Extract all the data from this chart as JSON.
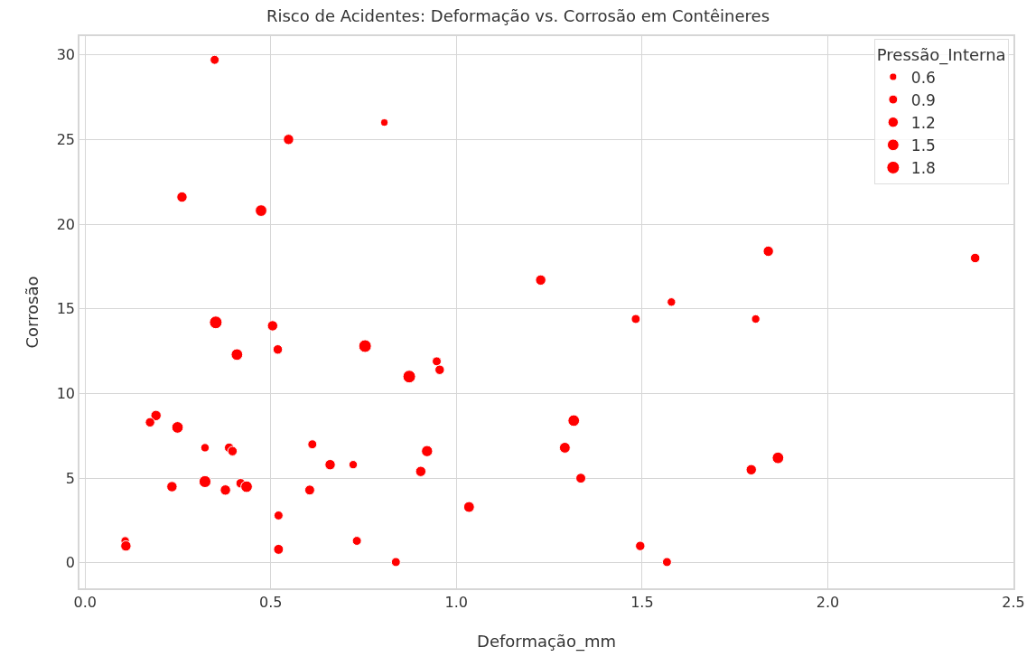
{
  "chart_data": {
    "type": "bubble",
    "title": "Risco de Acidentes: Deformação vs. Corrosão em Contêineres",
    "xlabel": "Deformação_mm",
    "ylabel": "Corrosão",
    "legend_title": "Pressão_Interna",
    "x": [
      0.349,
      0.806,
      0.548,
      0.261,
      0.474,
      0.352,
      0.505,
      0.409,
      0.519,
      0.754,
      0.873,
      0.947,
      0.955,
      0.191,
      0.175,
      0.249,
      0.323,
      0.388,
      0.397,
      0.612,
      0.66,
      0.722,
      0.921,
      0.904,
      0.234,
      0.323,
      0.378,
      0.419,
      0.435,
      0.605,
      0.521,
      0.108,
      0.11,
      0.521,
      0.732,
      0.837,
      1.579,
      1.483,
      1.806,
      1.316,
      1.292,
      1.335,
      1.034,
      1.495,
      1.567,
      1.866,
      1.794,
      1.227,
      1.84,
      2.397
    ],
    "values": [
      29.7,
      26.0,
      25.0,
      21.6,
      20.8,
      14.2,
      14.0,
      12.3,
      12.6,
      12.8,
      11.0,
      11.9,
      11.4,
      8.7,
      8.3,
      8.0,
      6.8,
      6.8,
      6.6,
      7.0,
      5.8,
      5.8,
      6.6,
      5.4,
      4.5,
      4.8,
      4.3,
      4.7,
      4.5,
      4.3,
      2.8,
      1.3,
      1.0,
      0.8,
      1.3,
      0.05,
      15.4,
      14.4,
      14.4,
      8.4,
      6.8,
      5.0,
      3.3,
      1.0,
      0.05,
      6.2,
      5.5,
      16.7,
      18.4,
      18.0
    ],
    "sizes": [
      0.9,
      0.6,
      1.2,
      1.2,
      1.5,
      1.8,
      1.2,
      1.5,
      1.0,
      1.8,
      1.8,
      0.9,
      1.0,
      1.2,
      1.0,
      1.5,
      0.8,
      1.0,
      1.0,
      0.9,
      1.2,
      0.8,
      1.4,
      1.2,
      1.2,
      1.6,
      1.2,
      1.0,
      1.5,
      1.1,
      0.9,
      0.8,
      1.2,
      1.1,
      0.9,
      0.9,
      0.8,
      0.9,
      0.8,
      1.5,
      1.3,
      1.1,
      1.3,
      1.0,
      0.9,
      1.5,
      1.2,
      1.2,
      1.2,
      1.0
    ],
    "size_legend": [
      0.6,
      0.9,
      1.2,
      1.5,
      1.8
    ],
    "color": "#ff0000",
    "xlim": [
      -0.015,
      2.5
    ],
    "xticks": [
      {
        "value": 0,
        "label": "0.0"
      },
      0.5,
      {
        "value": 1,
        "label": "1.0"
      },
      1.5,
      {
        "value": 2,
        "label": "2.0"
      },
      2.5
    ],
    "ylim": [
      -1.5,
      31.1
    ],
    "yticks": [
      0,
      5,
      10,
      15,
      20,
      25,
      30
    ],
    "grid": true,
    "marker": "circle"
  }
}
